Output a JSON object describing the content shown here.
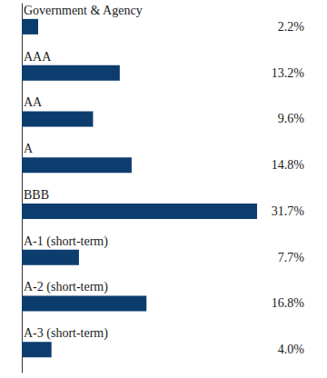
{
  "chart_data": {
    "type": "bar",
    "orientation": "horizontal",
    "categories": [
      "Government & Agency",
      "AAA",
      "AA",
      "A",
      "BBB",
      "A-1 (short-term)",
      "A-2 (short-term)",
      "A-3 (short-term)"
    ],
    "values": [
      2.2,
      13.2,
      9.6,
      14.8,
      31.7,
      7.7,
      16.8,
      4.0
    ],
    "value_labels": [
      "2.2%",
      "13.2%",
      "9.6%",
      "14.8%",
      "31.7%",
      "7.7%",
      "16.8%",
      "4.0%"
    ],
    "data_labels": true,
    "color": "#0d3d6e",
    "xlim": [
      0,
      35
    ],
    "grid": false,
    "tick_labels": "y"
  }
}
